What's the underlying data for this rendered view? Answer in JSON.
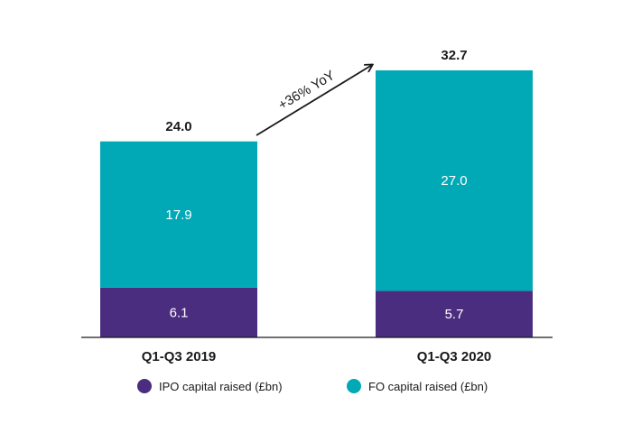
{
  "chart_data": {
    "type": "bar",
    "stacked": true,
    "categories": [
      "Q1-Q3 2019",
      "Q1-Q3 2020"
    ],
    "series": [
      {
        "name": "IPO capital raised (£bn)",
        "color": "#4b2d7f",
        "values": [
          6.1,
          5.7
        ]
      },
      {
        "name": "FO capital raised (£bn)",
        "color": "#00a9b5",
        "values": [
          17.9,
          27.0
        ]
      }
    ],
    "segment_labels": [
      [
        "6.1",
        "5.7"
      ],
      [
        "17.9",
        "27.0"
      ]
    ],
    "totals": [
      24.0,
      32.7
    ],
    "total_labels": [
      "24.0",
      "32.7"
    ],
    "annotation": "+36% YoY",
    "legend_position": "bottom",
    "grid": false,
    "ylim": [
      0,
      32.7
    ]
  }
}
